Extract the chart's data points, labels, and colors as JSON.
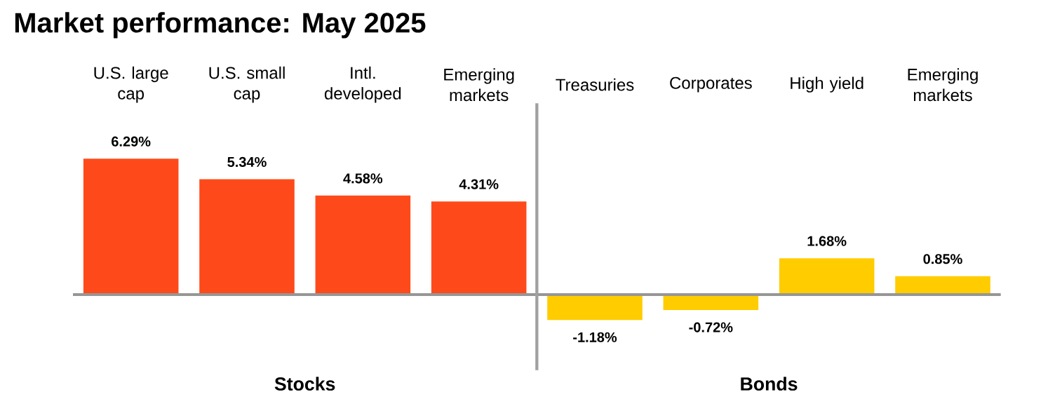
{
  "chart_data": {
    "type": "bar",
    "title": "Market performance: May 2025",
    "categories": [
      "U.S. large cap",
      "U.S. small cap",
      "Intl. developed",
      "Emerging markets",
      "Treasuries",
      "Corporates",
      "High yield",
      "Emerging markets"
    ],
    "values": [
      6.29,
      5.34,
      4.58,
      4.31,
      -1.18,
      -0.72,
      1.68,
      0.85
    ],
    "value_labels": [
      "6.29%",
      "5.34%",
      "4.58%",
      "4.31%",
      "-1.18%",
      "-0.72%",
      "1.68%",
      "0.85%"
    ],
    "colors": [
      "#fe4a1a",
      "#fe4a1a",
      "#fe4a1a",
      "#fe4a1a",
      "#ffcc00",
      "#ffcc00",
      "#ffcc00",
      "#ffcc00"
    ],
    "annotations": [
      "Stocks",
      "Bonds"
    ]
  }
}
